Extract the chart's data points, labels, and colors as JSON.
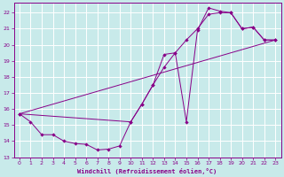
{
  "xlabel": "Windchill (Refroidissement éolien,°C)",
  "bg_color": "#c8eaea",
  "grid_color": "#b0d8d8",
  "line_color": "#880088",
  "xlim": [
    -0.5,
    23.5
  ],
  "ylim": [
    13,
    22.6
  ],
  "yticks": [
    13,
    14,
    15,
    16,
    17,
    18,
    19,
    20,
    21,
    22
  ],
  "xticks": [
    0,
    1,
    2,
    3,
    4,
    5,
    6,
    7,
    8,
    9,
    10,
    11,
    12,
    13,
    14,
    15,
    16,
    17,
    18,
    19,
    20,
    21,
    22,
    23
  ],
  "curve1_x": [
    0,
    1,
    2,
    3,
    4,
    5,
    6,
    7,
    8,
    9,
    10,
    11,
    12,
    13,
    14,
    15,
    16,
    17,
    18,
    19,
    20,
    21,
    22,
    23
  ],
  "curve1_y": [
    15.7,
    15.2,
    14.4,
    14.4,
    14.0,
    13.85,
    13.8,
    13.45,
    13.5,
    13.7,
    15.2,
    16.3,
    17.5,
    19.4,
    19.5,
    15.2,
    20.9,
    22.3,
    22.1,
    22.0,
    21.0,
    21.1,
    20.3,
    20.3
  ],
  "curve2_x": [
    0,
    10,
    11,
    12,
    13,
    14,
    15,
    16,
    17,
    18,
    19,
    20,
    21,
    22,
    23
  ],
  "curve2_y": [
    15.7,
    15.2,
    16.3,
    17.5,
    18.6,
    19.5,
    20.3,
    21.0,
    21.9,
    22.0,
    22.0,
    21.0,
    21.1,
    20.3,
    20.3
  ],
  "line3_x": [
    0,
    23
  ],
  "line3_y": [
    15.7,
    20.3
  ]
}
